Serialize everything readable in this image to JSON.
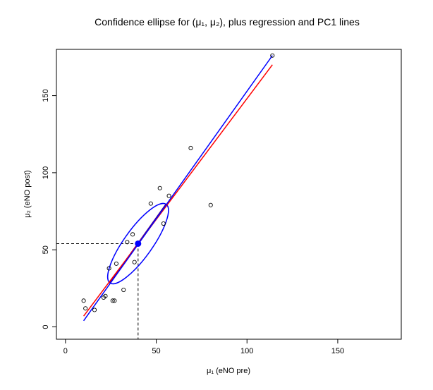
{
  "chart_data": {
    "type": "scatter",
    "title": "Confidence ellipse for (μ₁, μ₂), plus regression and PC1 lines",
    "xlabel": "μ₁ (eNO pre)",
    "ylabel": "μ₂ (eNO post)",
    "xlim": [
      -5,
      185
    ],
    "ylim": [
      -8,
      180
    ],
    "xticks": [
      0,
      50,
      100,
      150
    ],
    "yticks": [
      0,
      50,
      100,
      150
    ],
    "points": [
      {
        "x": 10,
        "y": 17
      },
      {
        "x": 11,
        "y": 12
      },
      {
        "x": 16,
        "y": 11
      },
      {
        "x": 21,
        "y": 19
      },
      {
        "x": 22,
        "y": 20
      },
      {
        "x": 24,
        "y": 38
      },
      {
        "x": 26,
        "y": 17
      },
      {
        "x": 27,
        "y": 17
      },
      {
        "x": 28,
        "y": 41
      },
      {
        "x": 32,
        "y": 24
      },
      {
        "x": 34,
        "y": 55
      },
      {
        "x": 37,
        "y": 60
      },
      {
        "x": 38,
        "y": 42
      },
      {
        "x": 47,
        "y": 80
      },
      {
        "x": 52,
        "y": 90
      },
      {
        "x": 54,
        "y": 67
      },
      {
        "x": 57,
        "y": 85
      },
      {
        "x": 69,
        "y": 116
      },
      {
        "x": 80,
        "y": 79
      },
      {
        "x": 114,
        "y": 176
      }
    ],
    "mean_point": {
      "x": 40,
      "y": 54
    },
    "regression_line": {
      "color": "#ff0000",
      "x": [
        10,
        114
      ],
      "y": [
        7,
        170
      ]
    },
    "pc1_line": {
      "color": "#0000ff",
      "x": [
        10,
        114
      ],
      "y": [
        4,
        176
      ]
    },
    "ellipse": {
      "color": "#0000ff",
      "center": {
        "x": 40,
        "y": 54
      },
      "endpoint_a": {
        "x": 24.5,
        "y": 28.5
      },
      "endpoint_b": {
        "x": 55.5,
        "y": 79.5
      },
      "minor_half_width": 3
    },
    "reference_lines": {
      "style": "dashed",
      "x": 40,
      "y": 54
    },
    "colors": {
      "points": "#000000",
      "mean": "#0000ff",
      "axes": "#000000"
    }
  }
}
